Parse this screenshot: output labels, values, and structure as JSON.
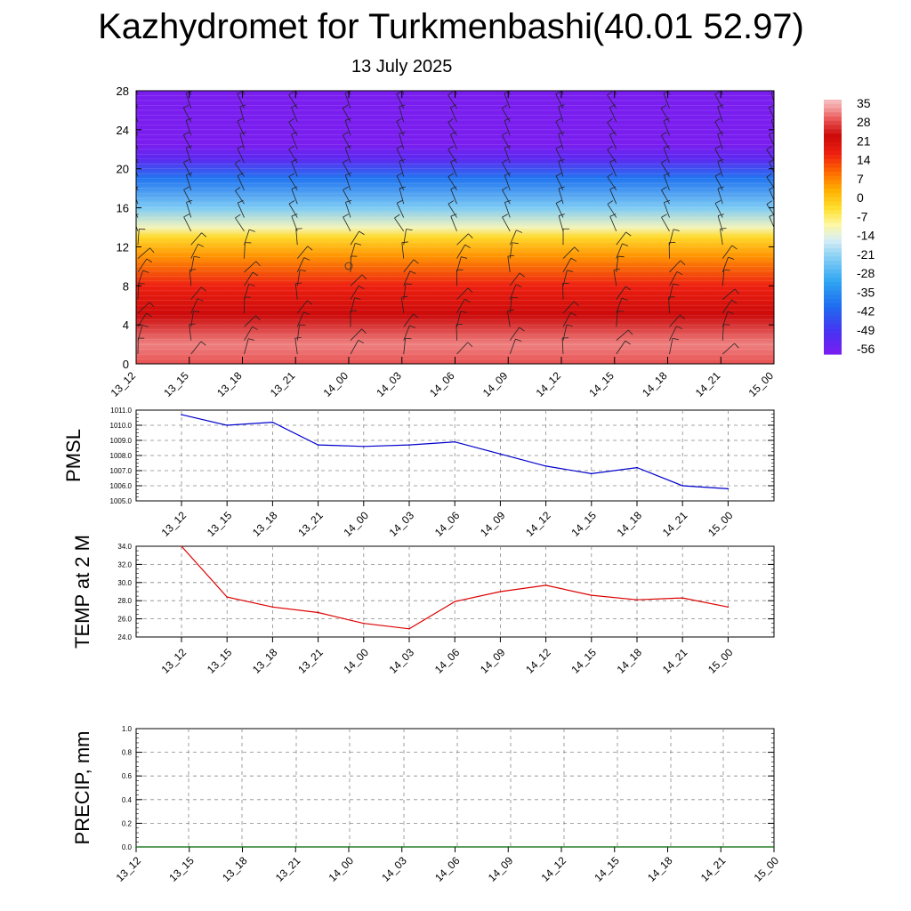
{
  "title": "Kazhydromet for Turkmenbashi(40.01 52.97)",
  "subtitle": "13 July 2025",
  "colors": {
    "pmsl_line": "#0000cc",
    "temp_line": "#dd0000",
    "precip_line": "#006400",
    "grid": "#888888"
  },
  "chart_data": [
    {
      "type": "heatmap",
      "title": "",
      "x": [
        "13_12",
        "13_15",
        "13_18",
        "13_21",
        "14_00",
        "14_03",
        "14_06",
        "14_09",
        "14_12",
        "14_15",
        "14_18",
        "14_21",
        "15_00"
      ],
      "y_ticks": [
        0,
        4,
        8,
        12,
        16,
        20,
        24,
        28
      ],
      "ylim": [
        0,
        28
      ],
      "colorbar": {
        "labels": [
          "35",
          "28",
          "21",
          "14",
          "7",
          "0",
          "-7",
          "-14",
          "-21",
          "-28",
          "-35",
          "-42",
          "-49",
          "-56"
        ],
        "range": [
          -60,
          38
        ]
      },
      "temperature_profile": [
        {
          "level": 0,
          "value": 30
        },
        {
          "level": 2,
          "value": 33
        },
        {
          "level": 5,
          "value": 24
        },
        {
          "level": 8,
          "value": 17
        },
        {
          "level": 11,
          "value": 6
        },
        {
          "level": 13,
          "value": -3
        },
        {
          "level": 14,
          "value": -12
        },
        {
          "level": 16,
          "value": -24
        },
        {
          "level": 19,
          "value": -40
        },
        {
          "level": 21,
          "value": -55
        },
        {
          "level": 22.5,
          "value": -60
        },
        {
          "level": 28,
          "value": -60
        }
      ],
      "wind_barbs": "shown"
    },
    {
      "type": "line",
      "ylabel": "PMSL",
      "x": [
        "13_12",
        "13_15",
        "13_18",
        "13_21",
        "14_00",
        "14_03",
        "14_06",
        "14_09",
        "14_12",
        "14_15",
        "14_18",
        "14_21",
        "15_00"
      ],
      "y_ticks": [
        "1005.0",
        "1006.0",
        "1007.0",
        "1008.0",
        "1009.0",
        "1010.0",
        "1011.0"
      ],
      "ylim": [
        1005,
        1011
      ],
      "values": [
        1010.7,
        1010.0,
        1010.2,
        1008.7,
        1008.6,
        1008.7,
        1008.9,
        1008.1,
        1007.3,
        1006.8,
        1007.2,
        1006.0,
        1005.8
      ],
      "grid": true
    },
    {
      "type": "line",
      "ylabel": "TEMP at 2 M",
      "x": [
        "13_12",
        "13_15",
        "13_18",
        "13_21",
        "14_00",
        "14_03",
        "14_06",
        "14_09",
        "14_12",
        "14_15",
        "14_18",
        "14_21",
        "15_00"
      ],
      "y_ticks": [
        "24.0",
        "26.0",
        "28.0",
        "30.0",
        "32.0",
        "34.0"
      ],
      "ylim": [
        24,
        34
      ],
      "values": [
        34.0,
        28.4,
        27.3,
        26.7,
        25.5,
        24.9,
        27.9,
        29.0,
        29.7,
        28.6,
        28.1,
        28.3,
        27.3
      ],
      "grid": true
    },
    {
      "type": "line",
      "ylabel": "PRECIP, mm",
      "x": [
        "13_12",
        "13_15",
        "13_18",
        "13_21",
        "14_00",
        "14_03",
        "14_06",
        "14_09",
        "14_12",
        "14_15",
        "14_18",
        "14_21",
        "15_00"
      ],
      "y_ticks": [
        "0.0",
        "0.2",
        "0.4",
        "0.6",
        "0.8",
        "1.0"
      ],
      "ylim": [
        0,
        1
      ],
      "values": [
        0,
        0,
        0,
        0,
        0,
        0,
        0,
        0,
        0,
        0,
        0,
        0,
        0
      ],
      "grid": true
    }
  ]
}
